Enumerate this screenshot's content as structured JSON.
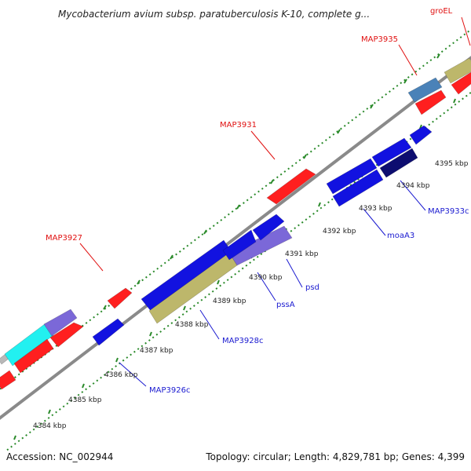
{
  "title": "Mycobacterium avium subsp. paratuberculosis K-10, complete g...",
  "footer": {
    "accession": "Accession: NC_002944",
    "summary": "Topology: circular; Length: 4,829,781 bp; Genes: 4,399"
  },
  "colors": {
    "backbone": "#8a8a8a",
    "outer_dots": "#2a8a2a",
    "inner_dots": "#2a8a2a",
    "red": "#ff1f1f",
    "blue": "#1212e0",
    "slate": "#7b68d8",
    "khaki": "#bdb76b",
    "cyan": "#22f0f0",
    "steel": "#4a82b8",
    "navy": "#0d0d70",
    "grey": "#b8b8b8",
    "label_red": "#e01010",
    "label_blue": "#1a1ad0"
  },
  "ticks": [
    {
      "label": "4384 kbp"
    },
    {
      "label": "4385 kbp"
    },
    {
      "label": "4386 kbp"
    },
    {
      "label": "4387 kbp"
    },
    {
      "label": "4388 kbp"
    },
    {
      "label": "4389 kbp"
    },
    {
      "label": "4390 kbp"
    },
    {
      "label": "4391 kbp"
    },
    {
      "label": "4392 kbp"
    },
    {
      "label": "4393 kbp"
    },
    {
      "label": "4394 kbp"
    },
    {
      "label": "4395 kbp"
    }
  ],
  "genes": {
    "forward": [
      {
        "name": "MAP3927",
        "label": "MAP3927"
      },
      {
        "name": "MAP3931",
        "label": "MAP3931"
      },
      {
        "name": "MAP3935",
        "label": "MAP3935"
      },
      {
        "name": "groEL",
        "label": "groEL"
      }
    ],
    "reverse": [
      {
        "name": "MAP3926c",
        "label": "MAP3926c"
      },
      {
        "name": "MAP3928c",
        "label": "MAP3928c"
      },
      {
        "name": "pssA",
        "label": "pssA"
      },
      {
        "name": "psd",
        "label": "psd"
      },
      {
        "name": "moaA3",
        "label": "moaA3"
      },
      {
        "name": "MAP3933c",
        "label": "MAP3933c"
      }
    ]
  }
}
